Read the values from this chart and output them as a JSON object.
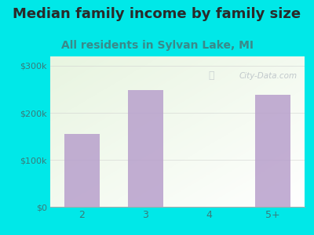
{
  "title": "Median family income by family size",
  "subtitle": "All residents in Sylvan Lake, MI",
  "categories": [
    "2",
    "3",
    "4",
    "5+"
  ],
  "values": [
    155000,
    248000,
    0,
    238000
  ],
  "bar_color": "#b8a0cc",
  "background_color": "#00e8e8",
  "yticks": [
    0,
    100000,
    200000,
    300000
  ],
  "ytick_labels": [
    "$0",
    "$100k",
    "$200k",
    "$300k"
  ],
  "ylim": [
    0,
    320000
  ],
  "title_fontsize": 13,
  "subtitle_fontsize": 10,
  "title_color": "#2a2a2a",
  "subtitle_color": "#3a8a8a",
  "tick_color": "#3a7a7a",
  "watermark": "City-Data.com"
}
